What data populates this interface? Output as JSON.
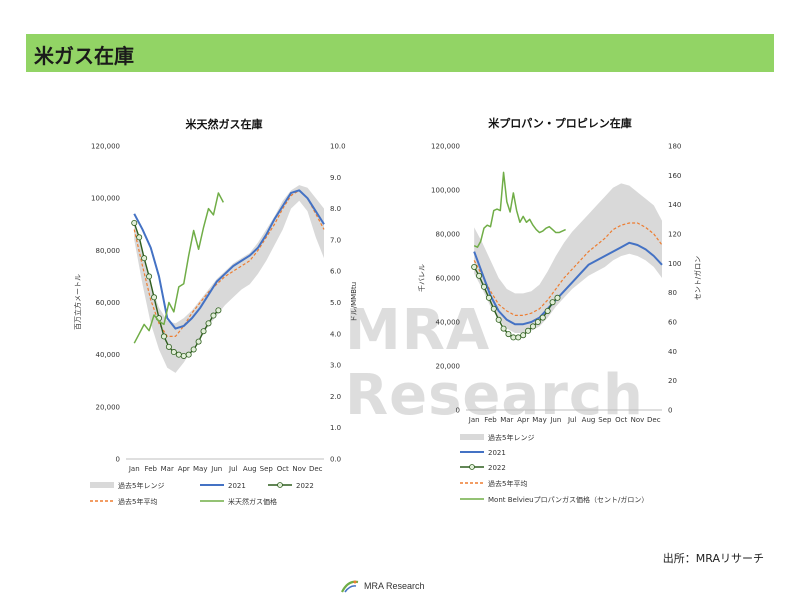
{
  "header": {
    "title": "米ガス在庫"
  },
  "watermark": "MRA Research",
  "source": "出所：MRAリサーチ",
  "footer": {
    "logo_text": "MRA Research"
  },
  "colors": {
    "header_bar": "#92d465",
    "range": "#d9d9d9",
    "y2021": "#4472c4",
    "y2022": "#2e5e1e",
    "avg": "#ed7d31",
    "price": "#70ad47"
  },
  "chart_data": [
    {
      "type": "line",
      "title": "米天然ガス在庫",
      "ylabel": "百万立方メートル",
      "y2label": "ドル/MMBtu",
      "ylim": [
        0,
        120000
      ],
      "y2lim": [
        0,
        10
      ],
      "yticks": [
        "0",
        "20,000",
        "40,000",
        "60,000",
        "80,000",
        "100,000",
        "120,000"
      ],
      "y2ticks": [
        "0.0",
        "1.0",
        "2.0",
        "3.0",
        "4.0",
        "5.0",
        "6.0",
        "7.0",
        "8.0",
        "9.0",
        "10.0"
      ],
      "months": [
        "Jan",
        "Feb",
        "Mar",
        "Apr",
        "May",
        "Jun",
        "Jul",
        "Aug",
        "Sep",
        "Oct",
        "Nov",
        "Dec"
      ],
      "legend": [
        "過去5年レンジ",
        "2021",
        "2022",
        "過去5年平均",
        "米天然ガス価格"
      ],
      "range_upper": [
        [
          0,
          92000
        ],
        [
          0.5,
          80000
        ],
        [
          1,
          67000
        ],
        [
          1.5,
          58000
        ],
        [
          2,
          53000
        ],
        [
          2.5,
          52000
        ],
        [
          3,
          54000
        ],
        [
          3.5,
          57000
        ],
        [
          4,
          61000
        ],
        [
          4.5,
          65000
        ],
        [
          5,
          69000
        ],
        [
          5.5,
          72000
        ],
        [
          6,
          75000
        ],
        [
          6.5,
          77000
        ],
        [
          7,
          79000
        ],
        [
          7.5,
          83000
        ],
        [
          8,
          88000
        ],
        [
          8.5,
          93000
        ],
        [
          9,
          99000
        ],
        [
          9.5,
          103000
        ],
        [
          10,
          105000
        ],
        [
          10.5,
          104000
        ],
        [
          11,
          100000
        ],
        [
          11.5,
          96000
        ]
      ],
      "range_lower": [
        [
          0,
          84000
        ],
        [
          0.5,
          67000
        ],
        [
          1,
          52000
        ],
        [
          1.5,
          42000
        ],
        [
          2,
          35000
        ],
        [
          2.5,
          33000
        ],
        [
          3,
          37000
        ],
        [
          3.5,
          42000
        ],
        [
          4,
          46000
        ],
        [
          4.5,
          51000
        ],
        [
          5,
          55000
        ],
        [
          5.5,
          59000
        ],
        [
          6,
          62000
        ],
        [
          6.5,
          65000
        ],
        [
          7,
          67000
        ],
        [
          7.5,
          71000
        ],
        [
          8,
          76000
        ],
        [
          8.5,
          82000
        ],
        [
          9,
          88000
        ],
        [
          9.5,
          96000
        ],
        [
          10,
          99000
        ],
        [
          10.5,
          95000
        ],
        [
          11,
          85000
        ],
        [
          11.5,
          77000
        ]
      ],
      "avg5y": [
        [
          0,
          88000
        ],
        [
          0.5,
          74000
        ],
        [
          1,
          61000
        ],
        [
          1.5,
          52000
        ],
        [
          2,
          47000
        ],
        [
          2.5,
          47000
        ],
        [
          3,
          51000
        ],
        [
          3.5,
          56000
        ],
        [
          4,
          60000
        ],
        [
          4.5,
          64000
        ],
        [
          5,
          67000
        ],
        [
          5.5,
          70000
        ],
        [
          6,
          72000
        ],
        [
          6.5,
          74000
        ],
        [
          7,
          76000
        ],
        [
          7.5,
          80000
        ],
        [
          8,
          85000
        ],
        [
          8.5,
          90000
        ],
        [
          9,
          96000
        ],
        [
          9.5,
          101000
        ],
        [
          10,
          103000
        ],
        [
          10.5,
          100000
        ],
        [
          11,
          94000
        ],
        [
          11.5,
          88000
        ]
      ],
      "y2021": [
        [
          0,
          94000
        ],
        [
          0.5,
          88000
        ],
        [
          1,
          81000
        ],
        [
          1.5,
          70000
        ],
        [
          2,
          54000
        ],
        [
          2.5,
          50000
        ],
        [
          3,
          51000
        ],
        [
          3.5,
          54000
        ],
        [
          4,
          58000
        ],
        [
          4.5,
          63000
        ],
        [
          5,
          68000
        ],
        [
          5.5,
          71000
        ],
        [
          6,
          74000
        ],
        [
          6.5,
          76000
        ],
        [
          7,
          78000
        ],
        [
          7.5,
          81000
        ],
        [
          8,
          86000
        ],
        [
          8.5,
          92000
        ],
        [
          9,
          97000
        ],
        [
          9.5,
          102000
        ],
        [
          10,
          103000
        ],
        [
          10.5,
          100000
        ],
        [
          11,
          95000
        ],
        [
          11.5,
          90000
        ]
      ],
      "y2022": [
        [
          0,
          90500
        ],
        [
          0.3,
          85000
        ],
        [
          0.6,
          77000
        ],
        [
          0.9,
          70000
        ],
        [
          1.2,
          62000
        ],
        [
          1.5,
          54000
        ],
        [
          1.8,
          47000
        ],
        [
          2.1,
          43000
        ],
        [
          2.4,
          41000
        ],
        [
          2.7,
          40000
        ],
        [
          3,
          39500
        ],
        [
          3.3,
          40000
        ],
        [
          3.6,
          42000
        ],
        [
          3.9,
          45000
        ],
        [
          4.2,
          49000
        ],
        [
          4.5,
          52000
        ],
        [
          4.8,
          55000
        ],
        [
          5.1,
          57000
        ]
      ],
      "price": [
        [
          0,
          3.7
        ],
        [
          0.3,
          4.0
        ],
        [
          0.6,
          4.3
        ],
        [
          0.9,
          4.1
        ],
        [
          1.2,
          4.6
        ],
        [
          1.5,
          4.4
        ],
        [
          1.8,
          4.3
        ],
        [
          2.1,
          5.0
        ],
        [
          2.4,
          4.7
        ],
        [
          2.7,
          5.5
        ],
        [
          3,
          5.6
        ],
        [
          3.3,
          6.5
        ],
        [
          3.6,
          7.3
        ],
        [
          3.9,
          6.7
        ],
        [
          4.2,
          7.4
        ],
        [
          4.5,
          8.0
        ],
        [
          4.8,
          7.8
        ],
        [
          5.1,
          8.5
        ],
        [
          5.4,
          8.2
        ]
      ]
    },
    {
      "type": "line",
      "title": "米プロパン・プロピレン在庫",
      "ylabel": "千バレル",
      "y2label": "セント/ガロン",
      "ylim": [
        0,
        120000
      ],
      "y2lim": [
        0,
        180
      ],
      "yticks": [
        "0",
        "20,000",
        "40,000",
        "60,000",
        "80,000",
        "100,000",
        "120,000"
      ],
      "y2ticks": [
        "0",
        "20",
        "40",
        "60",
        "80",
        "100",
        "120",
        "140",
        "160",
        "180"
      ],
      "months": [
        "Jan",
        "Feb",
        "Mar",
        "Apr",
        "May",
        "Jun",
        "Jul",
        "Aug",
        "Sep",
        "Oct",
        "Nov",
        "Dec"
      ],
      "legend": [
        "過去5年レンジ",
        "2021",
        "2022",
        "過去5年平均",
        "Mont Belvieuプロパンガス価格（セント/ガロン）"
      ],
      "range_upper": [
        [
          0,
          83000
        ],
        [
          0.5,
          76000
        ],
        [
          1,
          68000
        ],
        [
          1.5,
          60000
        ],
        [
          2,
          55000
        ],
        [
          2.5,
          53000
        ],
        [
          3,
          53000
        ],
        [
          3.5,
          54000
        ],
        [
          4,
          57000
        ],
        [
          4.5,
          63000
        ],
        [
          5,
          70000
        ],
        [
          5.5,
          76000
        ],
        [
          6,
          81000
        ],
        [
          6.5,
          85000
        ],
        [
          7,
          89000
        ],
        [
          7.5,
          93000
        ],
        [
          8,
          97000
        ],
        [
          8.5,
          101000
        ],
        [
          9,
          103000
        ],
        [
          9.5,
          102000
        ],
        [
          10,
          99000
        ],
        [
          10.5,
          96000
        ],
        [
          11,
          93000
        ],
        [
          11.5,
          86000
        ]
      ],
      "range_lower": [
        [
          0,
          62000
        ],
        [
          0.5,
          55000
        ],
        [
          1,
          47000
        ],
        [
          1.5,
          41000
        ],
        [
          2,
          37000
        ],
        [
          2.5,
          35000
        ],
        [
          3,
          35000
        ],
        [
          3.5,
          36000
        ],
        [
          4,
          38000
        ],
        [
          4.5,
          42000
        ],
        [
          5,
          47000
        ],
        [
          5.5,
          51000
        ],
        [
          6,
          55000
        ],
        [
          6.5,
          58000
        ],
        [
          7,
          61000
        ],
        [
          7.5,
          63000
        ],
        [
          8,
          65000
        ],
        [
          8.5,
          68000
        ],
        [
          9,
          70000
        ],
        [
          9.5,
          71000
        ],
        [
          10,
          70000
        ],
        [
          10.5,
          68000
        ],
        [
          11,
          65000
        ],
        [
          11.5,
          60000
        ]
      ],
      "avg5y": [
        [
          0,
          68000
        ],
        [
          0.5,
          61000
        ],
        [
          1,
          54000
        ],
        [
          1.5,
          48000
        ],
        [
          2,
          45000
        ],
        [
          2.5,
          43000
        ],
        [
          3,
          43000
        ],
        [
          3.5,
          44000
        ],
        [
          4,
          46000
        ],
        [
          4.5,
          50000
        ],
        [
          5,
          55000
        ],
        [
          5.5,
          60000
        ],
        [
          6,
          64000
        ],
        [
          6.5,
          68000
        ],
        [
          7,
          72000
        ],
        [
          7.5,
          75000
        ],
        [
          8,
          78000
        ],
        [
          8.5,
          82000
        ],
        [
          9,
          84000
        ],
        [
          9.5,
          85000
        ],
        [
          10,
          85000
        ],
        [
          10.5,
          83000
        ],
        [
          11,
          80000
        ],
        [
          11.5,
          75000
        ]
      ],
      "y2021": [
        [
          0,
          72000
        ],
        [
          0.5,
          62000
        ],
        [
          1,
          52000
        ],
        [
          1.5,
          45000
        ],
        [
          2,
          41000
        ],
        [
          2.5,
          39000
        ],
        [
          3,
          39000
        ],
        [
          3.5,
          40000
        ],
        [
          4,
          42000
        ],
        [
          4.5,
          46000
        ],
        [
          5,
          50000
        ],
        [
          5.5,
          54000
        ],
        [
          6,
          58000
        ],
        [
          6.5,
          62000
        ],
        [
          7,
          66000
        ],
        [
          7.5,
          68000
        ],
        [
          8,
          70000
        ],
        [
          8.5,
          72000
        ],
        [
          9,
          74000
        ],
        [
          9.5,
          76000
        ],
        [
          10,
          75000
        ],
        [
          10.5,
          73000
        ],
        [
          11,
          70000
        ],
        [
          11.5,
          66000
        ]
      ],
      "y2022": [
        [
          0,
          65000
        ],
        [
          0.3,
          61000
        ],
        [
          0.6,
          56000
        ],
        [
          0.9,
          51000
        ],
        [
          1.2,
          46000
        ],
        [
          1.5,
          41000
        ],
        [
          1.8,
          37000
        ],
        [
          2.1,
          34500
        ],
        [
          2.4,
          33000
        ],
        [
          2.7,
          33000
        ],
        [
          3,
          34000
        ],
        [
          3.3,
          36000
        ],
        [
          3.6,
          38000
        ],
        [
          3.9,
          40000
        ],
        [
          4.2,
          42000
        ],
        [
          4.5,
          45000
        ],
        [
          4.8,
          49000
        ],
        [
          5.1,
          51000
        ]
      ],
      "price": [
        [
          0,
          112
        ],
        [
          0.2,
          111
        ],
        [
          0.4,
          115
        ],
        [
          0.6,
          124
        ],
        [
          0.8,
          126
        ],
        [
          1,
          125
        ],
        [
          1.2,
          136
        ],
        [
          1.4,
          137
        ],
        [
          1.6,
          136
        ],
        [
          1.8,
          162
        ],
        [
          2,
          142
        ],
        [
          2.2,
          135
        ],
        [
          2.4,
          148
        ],
        [
          2.6,
          136
        ],
        [
          2.8,
          128
        ],
        [
          3,
          132
        ],
        [
          3.2,
          128
        ],
        [
          3.4,
          130
        ],
        [
          3.6,
          126
        ],
        [
          3.8,
          123
        ],
        [
          4,
          121
        ],
        [
          4.2,
          122
        ],
        [
          4.4,
          124
        ],
        [
          4.6,
          125
        ],
        [
          4.8,
          123
        ],
        [
          5,
          121
        ],
        [
          5.2,
          121
        ],
        [
          5.4,
          122
        ],
        [
          5.6,
          123
        ]
      ]
    }
  ]
}
